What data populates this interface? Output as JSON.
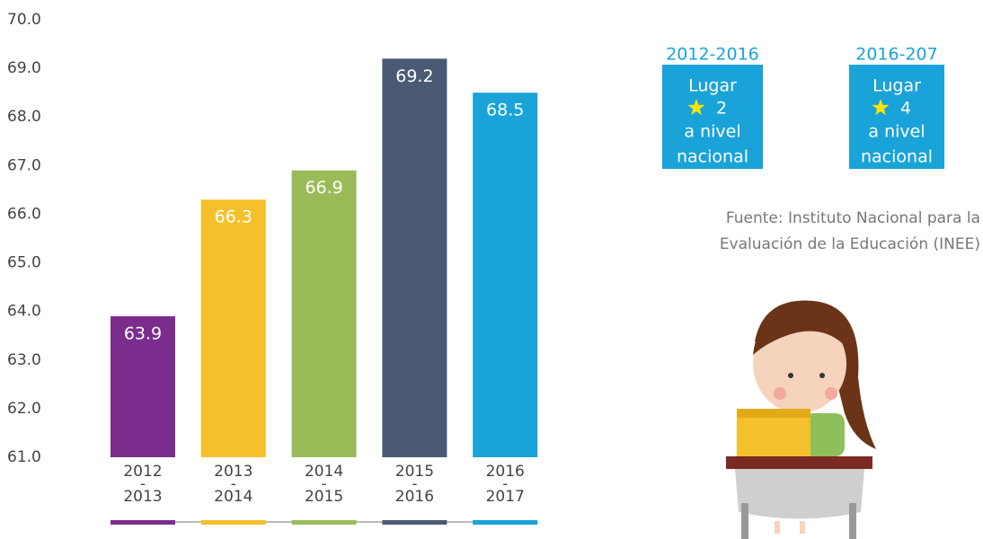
{
  "chart_data": {
    "type": "bar",
    "categories": [
      "2012-2013",
      "2013-2014",
      "2014-2015",
      "2015-2016",
      "2016-2017"
    ],
    "values": [
      63.9,
      66.3,
      66.9,
      69.2,
      68.5
    ],
    "colors": [
      "#7b2d8e",
      "#f4c02c",
      "#9bbb59",
      "#4a5a75",
      "#1aa3d8"
    ],
    "ylim": [
      61,
      70
    ],
    "yticks": [
      {
        "value": 61,
        "label": "61.0"
      },
      {
        "value": 62,
        "label": "62.0"
      },
      {
        "value": 63,
        "label": "63.0"
      },
      {
        "value": 64,
        "label": "64.0"
      },
      {
        "value": 65,
        "label": "65.0"
      },
      {
        "value": 66,
        "label": "66.0"
      },
      {
        "value": 67,
        "label": "67.0"
      },
      {
        "value": 68,
        "label": "68.0"
      },
      {
        "value": 69,
        "label": "69.0"
      },
      {
        "value": 70,
        "label": "70.0"
      }
    ],
    "grid": false
  },
  "panels": [
    {
      "title": "2012-2016",
      "lines": [
        "Lugar",
        "2",
        "a nivel",
        "nacional"
      ]
    },
    {
      "title": "2016-207",
      "lines": [
        "Lugar",
        "4",
        "a nivel",
        "nacional"
      ]
    }
  ],
  "source": [
    "Fuente:  Instituto Nacional para la",
    "Evaluación de la Educación (INEE)"
  ]
}
